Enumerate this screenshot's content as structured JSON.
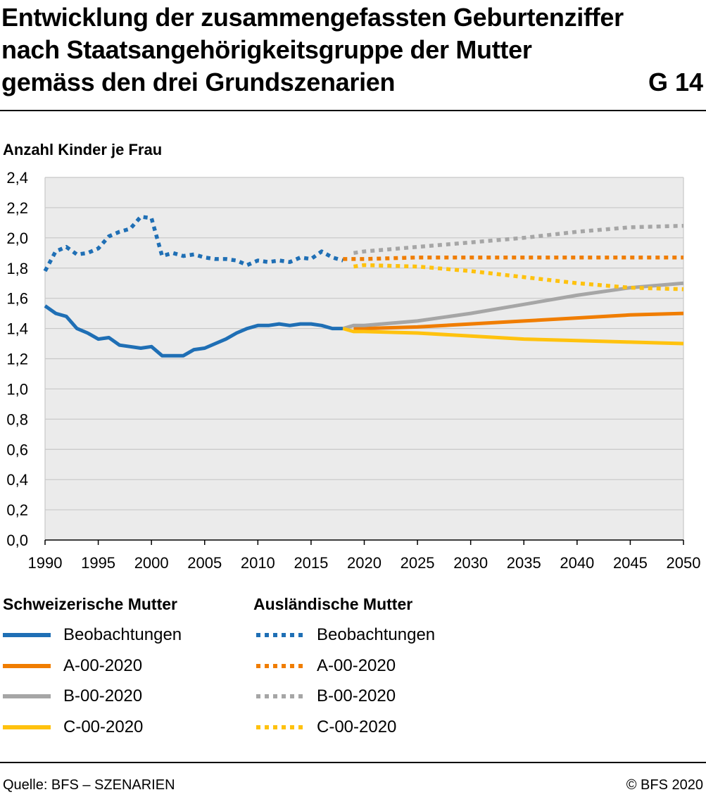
{
  "header": {
    "title_lines": [
      "Entwicklung der zusammengefassten Geburtenziffer",
      "nach Staatsangehörigkeitsgruppe der Mutter",
      "gemäss den drei Grundszenarien"
    ],
    "code": "G 14"
  },
  "footer": {
    "source": "Quelle: BFS – SZENARIEN",
    "copyright": "© BFS 2020"
  },
  "legend": {
    "group_swiss": "Schweizerische Mutter",
    "group_foreign": "Ausländische Mutter",
    "items": [
      "Beobachtungen",
      "A-00-2020",
      "B-00-2020",
      "C-00-2020"
    ]
  },
  "colors": {
    "observed": "#1f6fb5",
    "A": "#f07d00",
    "B": "#a6a6a6",
    "C": "#ffc20e",
    "plot_bg": "#ebebeb",
    "grid": "#c8c8c8"
  },
  "chart_data": {
    "type": "line",
    "ylabel": "Anzahl Kinder je Frau",
    "xlabel": "",
    "ylim": [
      0,
      2.4
    ],
    "xlim": [
      1990,
      2050
    ],
    "yticks": [
      "0,0",
      "0,2",
      "0,4",
      "0,6",
      "0,8",
      "1,0",
      "1,2",
      "1,4",
      "1,6",
      "1,8",
      "2,0",
      "2,2",
      "2,4"
    ],
    "xticks": [
      "1990",
      "1995",
      "2000",
      "2005",
      "2010",
      "2015",
      "2020",
      "2025",
      "2030",
      "2035",
      "2040",
      "2045",
      "2050"
    ],
    "grid": true,
    "series": [
      {
        "name": "Schweizerische Mutter – Beobachtungen",
        "style": "solid",
        "color_key": "observed",
        "x": [
          1990,
          1991,
          1992,
          1993,
          1994,
          1995,
          1996,
          1997,
          1998,
          1999,
          2000,
          2001,
          2002,
          2003,
          2004,
          2005,
          2006,
          2007,
          2008,
          2009,
          2010,
          2011,
          2012,
          2013,
          2014,
          2015,
          2016,
          2017,
          2018
        ],
        "y": [
          1.55,
          1.5,
          1.48,
          1.4,
          1.37,
          1.33,
          1.34,
          1.29,
          1.28,
          1.27,
          1.28,
          1.22,
          1.22,
          1.22,
          1.26,
          1.27,
          1.3,
          1.33,
          1.37,
          1.4,
          1.42,
          1.42,
          1.43,
          1.42,
          1.43,
          1.43,
          1.42,
          1.4,
          1.4
        ]
      },
      {
        "name": "Schweizerische Mutter – A-00-2020",
        "style": "solid",
        "color_key": "A",
        "x": [
          2019,
          2020,
          2025,
          2030,
          2035,
          2040,
          2045,
          2050
        ],
        "y": [
          1.4,
          1.4,
          1.41,
          1.43,
          1.45,
          1.47,
          1.49,
          1.5
        ]
      },
      {
        "name": "Schweizerische Mutter – B-00-2020",
        "style": "solid",
        "color_key": "B",
        "x": [
          2018,
          2019,
          2020,
          2025,
          2030,
          2035,
          2040,
          2045,
          2050
        ],
        "y": [
          1.4,
          1.42,
          1.42,
          1.45,
          1.5,
          1.56,
          1.62,
          1.67,
          1.7
        ]
      },
      {
        "name": "Schweizerische Mutter – C-00-2020",
        "style": "solid",
        "color_key": "C",
        "x": [
          2018,
          2019,
          2020,
          2025,
          2030,
          2035,
          2040,
          2045,
          2050
        ],
        "y": [
          1.4,
          1.38,
          1.38,
          1.37,
          1.35,
          1.33,
          1.32,
          1.31,
          1.3
        ]
      },
      {
        "name": "Ausländische Mutter – Beobachtungen",
        "style": "dotted",
        "color_key": "observed",
        "x": [
          1990,
          1991,
          1992,
          1993,
          1994,
          1995,
          1996,
          1997,
          1998,
          1999,
          2000,
          2001,
          2002,
          2003,
          2004,
          2005,
          2006,
          2007,
          2008,
          2009,
          2010,
          2011,
          2012,
          2013,
          2014,
          2015,
          2016,
          2017,
          2018
        ],
        "y": [
          1.78,
          1.91,
          1.94,
          1.89,
          1.9,
          1.93,
          2.01,
          2.04,
          2.06,
          2.14,
          2.13,
          1.88,
          1.9,
          1.88,
          1.89,
          1.87,
          1.86,
          1.86,
          1.85,
          1.82,
          1.85,
          1.84,
          1.85,
          1.84,
          1.87,
          1.86,
          1.91,
          1.87,
          1.85
        ]
      },
      {
        "name": "Ausländische Mutter – A-00-2020",
        "style": "dotted",
        "color_key": "A",
        "x": [
          2018,
          2020,
          2025,
          2030,
          2035,
          2040,
          2045,
          2050
        ],
        "y": [
          1.86,
          1.86,
          1.87,
          1.87,
          1.87,
          1.87,
          1.87,
          1.87
        ]
      },
      {
        "name": "Ausländische Mutter – B-00-2020",
        "style": "dotted",
        "color_key": "B",
        "x": [
          2019,
          2020,
          2025,
          2030,
          2035,
          2040,
          2045,
          2050
        ],
        "y": [
          1.9,
          1.91,
          1.94,
          1.97,
          2.0,
          2.04,
          2.07,
          2.08
        ]
      },
      {
        "name": "Ausländische Mutter – C-00-2020",
        "style": "dotted",
        "color_key": "C",
        "x": [
          2019,
          2020,
          2025,
          2030,
          2035,
          2040,
          2045,
          2050
        ],
        "y": [
          1.81,
          1.82,
          1.81,
          1.78,
          1.74,
          1.7,
          1.67,
          1.66
        ]
      }
    ]
  }
}
